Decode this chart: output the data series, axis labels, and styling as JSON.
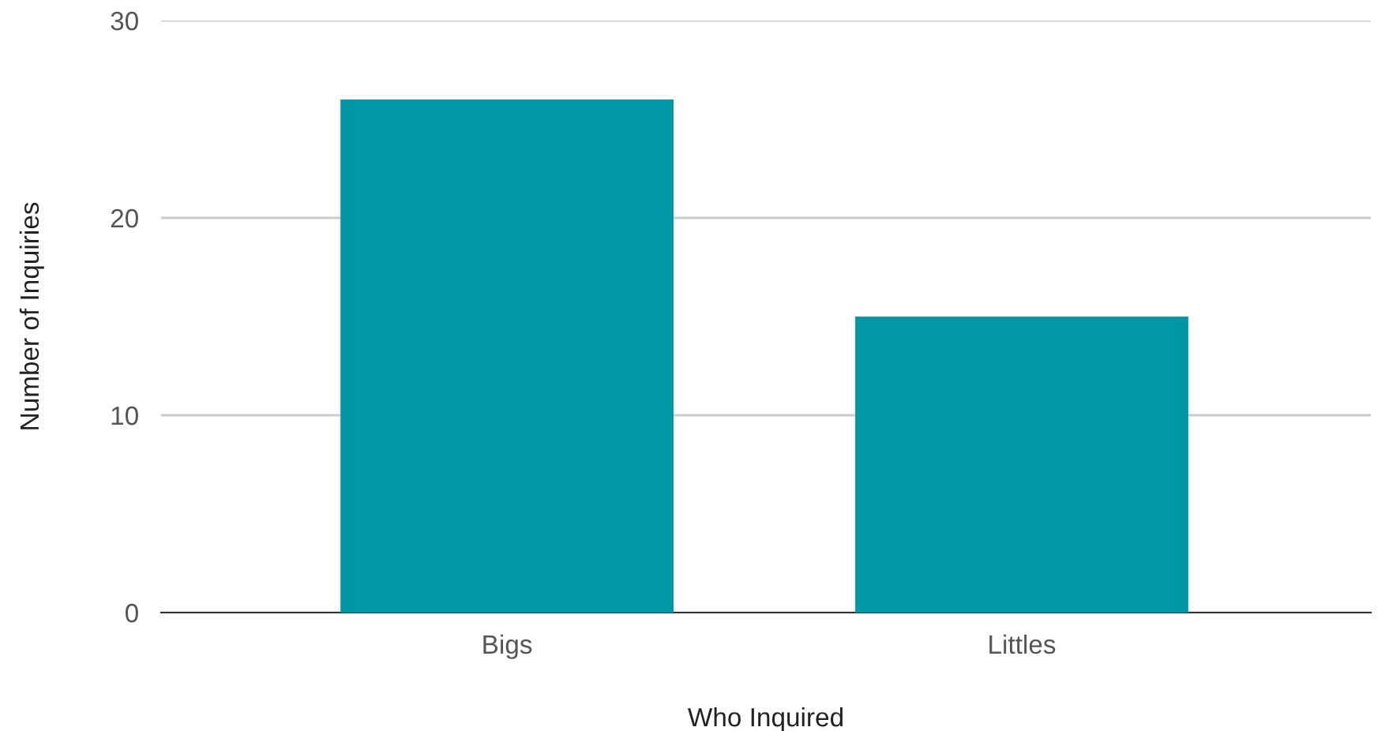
{
  "chart_data": {
    "type": "bar",
    "xlabel": "Who Inquired",
    "ylabel": "Number of Inquiries",
    "categories": [
      "Bigs",
      "Littles"
    ],
    "values": [
      26,
      15
    ],
    "color": "#0097a7",
    "ylim": [
      0,
      30
    ],
    "yticks": [
      0,
      10,
      20,
      30
    ],
    "grid": "y",
    "legend": false
  }
}
